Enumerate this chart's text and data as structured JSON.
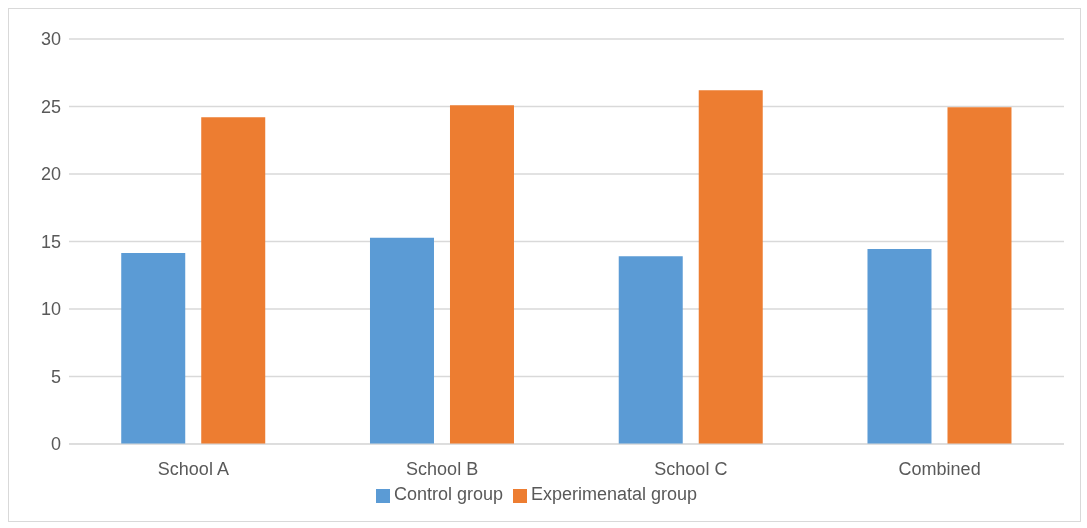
{
  "chart_data": {
    "type": "bar",
    "categories": [
      "School A",
      "School B",
      "School C",
      "Combined"
    ],
    "series": [
      {
        "name": "Control group",
        "color": "#5b9bd5",
        "values": [
          14.15,
          15.27,
          13.9,
          14.45
        ]
      },
      {
        "name": "Experimenatal group",
        "color": "#ed7d31",
        "values": [
          24.2,
          25.1,
          26.2,
          24.95
        ]
      }
    ],
    "ylim": [
      0,
      30
    ],
    "yticks": [
      0,
      5,
      10,
      15,
      20,
      25,
      30
    ],
    "grid": "y",
    "legend": "bottom"
  }
}
